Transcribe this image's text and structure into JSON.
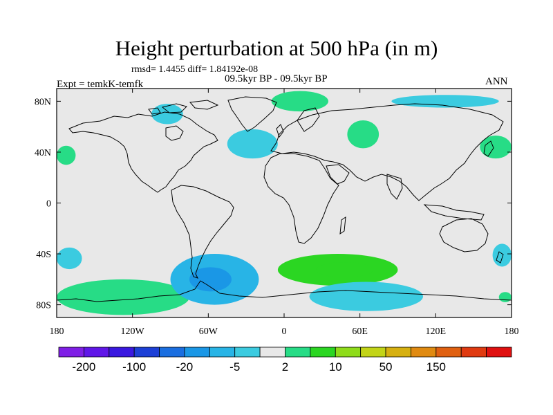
{
  "title": "Height perturbation at 500 hPa (in m)",
  "stats": "rmsd= 1.4455 diff= 1.84192e-08",
  "experiment": "Expt = temkK-temfk",
  "period": "09.5kyr BP - 09.5kyr BP",
  "season": "ANN",
  "map": {
    "projection": "cylindrical equidistant",
    "background_color": "#e8e8e8",
    "coastline_color": "#000000",
    "lon_range": [
      -180,
      180
    ],
    "lat_range": [
      -90,
      90
    ],
    "lat_ticks": [
      {
        "label": "80N",
        "lat": 80
      },
      {
        "label": "40N",
        "lat": 40
      },
      {
        "label": "0",
        "lat": 0
      },
      {
        "label": "40S",
        "lat": -40
      },
      {
        "label": "80S",
        "lat": -80
      }
    ],
    "lon_ticks": [
      {
        "label": "180",
        "lon": -180
      },
      {
        "label": "120W",
        "lon": -120
      },
      {
        "label": "60W",
        "lon": -60
      },
      {
        "label": "0",
        "lon": 0
      },
      {
        "label": "60E",
        "lon": 60
      },
      {
        "label": "120E",
        "lon": 120
      },
      {
        "label": "180",
        "lon": 180
      }
    ],
    "anomaly_regions": [
      {
        "name": "north-pacific-east",
        "sign": "positive",
        "level": "2-5",
        "lon": [
          -180,
          -165
        ],
        "lat": [
          30,
          45
        ]
      },
      {
        "name": "greenland-north",
        "sign": "positive",
        "level": "2-5",
        "lon": [
          -10,
          35
        ],
        "lat": [
          72,
          88
        ]
      },
      {
        "name": "north-atlantic-low",
        "sign": "negative",
        "level": "-5--2",
        "lon": [
          -45,
          -5
        ],
        "lat": [
          35,
          58
        ]
      },
      {
        "name": "europe-high",
        "sign": "positive",
        "level": "2-5",
        "lon": [
          50,
          75
        ],
        "lat": [
          43,
          65
        ]
      },
      {
        "name": "siberia-arctic-low",
        "sign": "negative",
        "level": "-5--2",
        "lon": [
          85,
          170
        ],
        "lat": [
          75,
          85
        ]
      },
      {
        "name": "north-pacific-west",
        "sign": "positive",
        "level": "2-5",
        "lon": [
          155,
          180
        ],
        "lat": [
          35,
          53
        ]
      },
      {
        "name": "canada-arctic-low",
        "sign": "negative",
        "level": "-5--2",
        "lon": [
          -105,
          -80
        ],
        "lat": [
          62,
          78
        ]
      },
      {
        "name": "south-pacific-east-low",
        "sign": "negative",
        "level": "-5--2",
        "lon": [
          -180,
          -160
        ],
        "lat": [
          -52,
          -35
        ]
      },
      {
        "name": "south-pacific-high",
        "sign": "positive",
        "level": "2-5",
        "lon": [
          -180,
          -75
        ],
        "lat": [
          -88,
          -60
        ]
      },
      {
        "name": "drake-passage-low",
        "sign": "negative",
        "level": "-20--5",
        "lon": [
          -90,
          -20
        ],
        "lat": [
          -80,
          -40
        ]
      },
      {
        "name": "south-atlantic-indian-high",
        "sign": "positive",
        "level": "5-10",
        "lon": [
          -5,
          90
        ],
        "lat": [
          -65,
          -40
        ]
      },
      {
        "name": "southern-indian-low",
        "sign": "negative",
        "level": "-5--2",
        "lon": [
          20,
          110
        ],
        "lat": [
          -85,
          -62
        ]
      },
      {
        "name": "australia-east-low",
        "sign": "negative",
        "level": "-5--2",
        "lon": [
          165,
          180
        ],
        "lat": [
          -50,
          -32
        ]
      },
      {
        "name": "south-east-pacific-high",
        "sign": "positive",
        "level": "2-5",
        "lon": [
          170,
          180
        ],
        "lat": [
          -78,
          -70
        ]
      }
    ]
  },
  "colorbar": {
    "labels": [
      "-200",
      "-100",
      "-20",
      "-5",
      "2",
      "10",
      "50",
      "150"
    ],
    "colors": [
      "#7f1fe6",
      "#6016e8",
      "#3a18e0",
      "#1c3fd6",
      "#1a6ee0",
      "#1a97e6",
      "#28b4e6",
      "#3bcbe0",
      "#e8e8e8",
      "#27dc86",
      "#2bd622",
      "#8fdc1a",
      "#c2d417",
      "#d6b010",
      "#e08a10",
      "#e06010",
      "#e03a10",
      "#e01010"
    ]
  }
}
